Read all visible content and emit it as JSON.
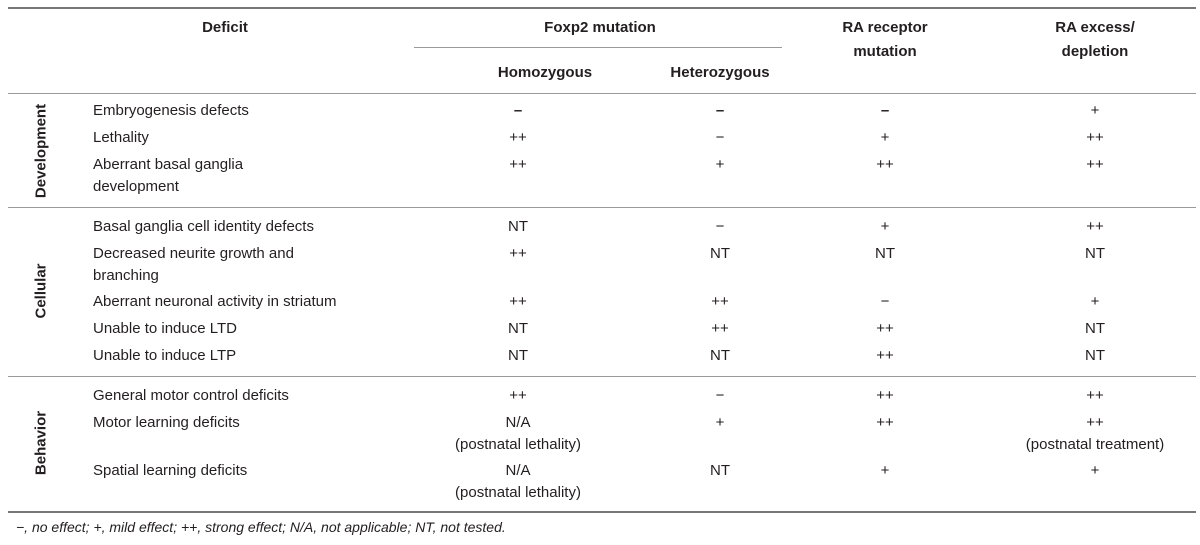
{
  "headers": {
    "deficit": "Deficit",
    "foxp2": "Foxp2 mutation",
    "homozygous": "Homozygous",
    "heterozygous": "Heterozygous",
    "ra_receptor_1": "RA receptor",
    "ra_receptor_2": "mutation",
    "ra_excess_1": "RA excess/",
    "ra_excess_2": "depletion"
  },
  "categories": {
    "development": "Development",
    "cellular": "Cellular",
    "behavior": "Behavior"
  },
  "rows": [
    {
      "deficit": [
        "Embryogenesis defects"
      ],
      "homo": [
        "–"
      ],
      "hetero": [
        "–"
      ],
      "rar": [
        "–"
      ],
      "ra": [
        "+"
      ]
    },
    {
      "deficit": [
        "Lethality"
      ],
      "homo": [
        "++"
      ],
      "hetero": [
        "−"
      ],
      "rar": [
        "+"
      ],
      "ra": [
        "++"
      ]
    },
    {
      "deficit": [
        "Aberrant basal ganglia",
        "development"
      ],
      "homo": [
        "++"
      ],
      "hetero": [
        "+"
      ],
      "rar": [
        "++"
      ],
      "ra": [
        "++"
      ]
    },
    {
      "deficit": [
        "Basal ganglia cell identity defects"
      ],
      "homo": [
        "NT"
      ],
      "hetero": [
        "−"
      ],
      "rar": [
        "+"
      ],
      "ra": [
        "++"
      ]
    },
    {
      "deficit": [
        "Decreased neurite growth and",
        "branching"
      ],
      "homo": [
        "++"
      ],
      "hetero": [
        "NT"
      ],
      "rar": [
        "NT"
      ],
      "ra": [
        "NT"
      ]
    },
    {
      "deficit": [
        "Aberrant neuronal activity in striatum"
      ],
      "homo": [
        "++"
      ],
      "hetero": [
        "++"
      ],
      "rar": [
        "−"
      ],
      "ra": [
        "+"
      ]
    },
    {
      "deficit": [
        "Unable to induce LTD"
      ],
      "homo": [
        "NT"
      ],
      "hetero": [
        "++"
      ],
      "rar": [
        "++"
      ],
      "ra": [
        "NT"
      ]
    },
    {
      "deficit": [
        "Unable to induce LTP"
      ],
      "homo": [
        "NT"
      ],
      "hetero": [
        "NT"
      ],
      "rar": [
        "++"
      ],
      "ra": [
        "NT"
      ]
    },
    {
      "deficit": [
        "General motor control deficits"
      ],
      "homo": [
        "++"
      ],
      "hetero": [
        "−"
      ],
      "rar": [
        "++"
      ],
      "ra": [
        "++"
      ]
    },
    {
      "deficit": [
        "Motor learning deficits"
      ],
      "homo": [
        "N/A",
        "(postnatal lethality)"
      ],
      "hetero": [
        "+"
      ],
      "rar": [
        "++"
      ],
      "ra": [
        "++",
        "(postnatal treatment)"
      ]
    },
    {
      "deficit": [
        "Spatial learning deficits"
      ],
      "homo": [
        "N/A",
        "(postnatal lethality)"
      ],
      "hetero": [
        "NT"
      ],
      "rar": [
        "+"
      ],
      "ra": [
        "+"
      ]
    }
  ],
  "footnote": "−, no effect; +, mild effect; ++, strong effect; N/A, not applicable; NT, not tested."
}
